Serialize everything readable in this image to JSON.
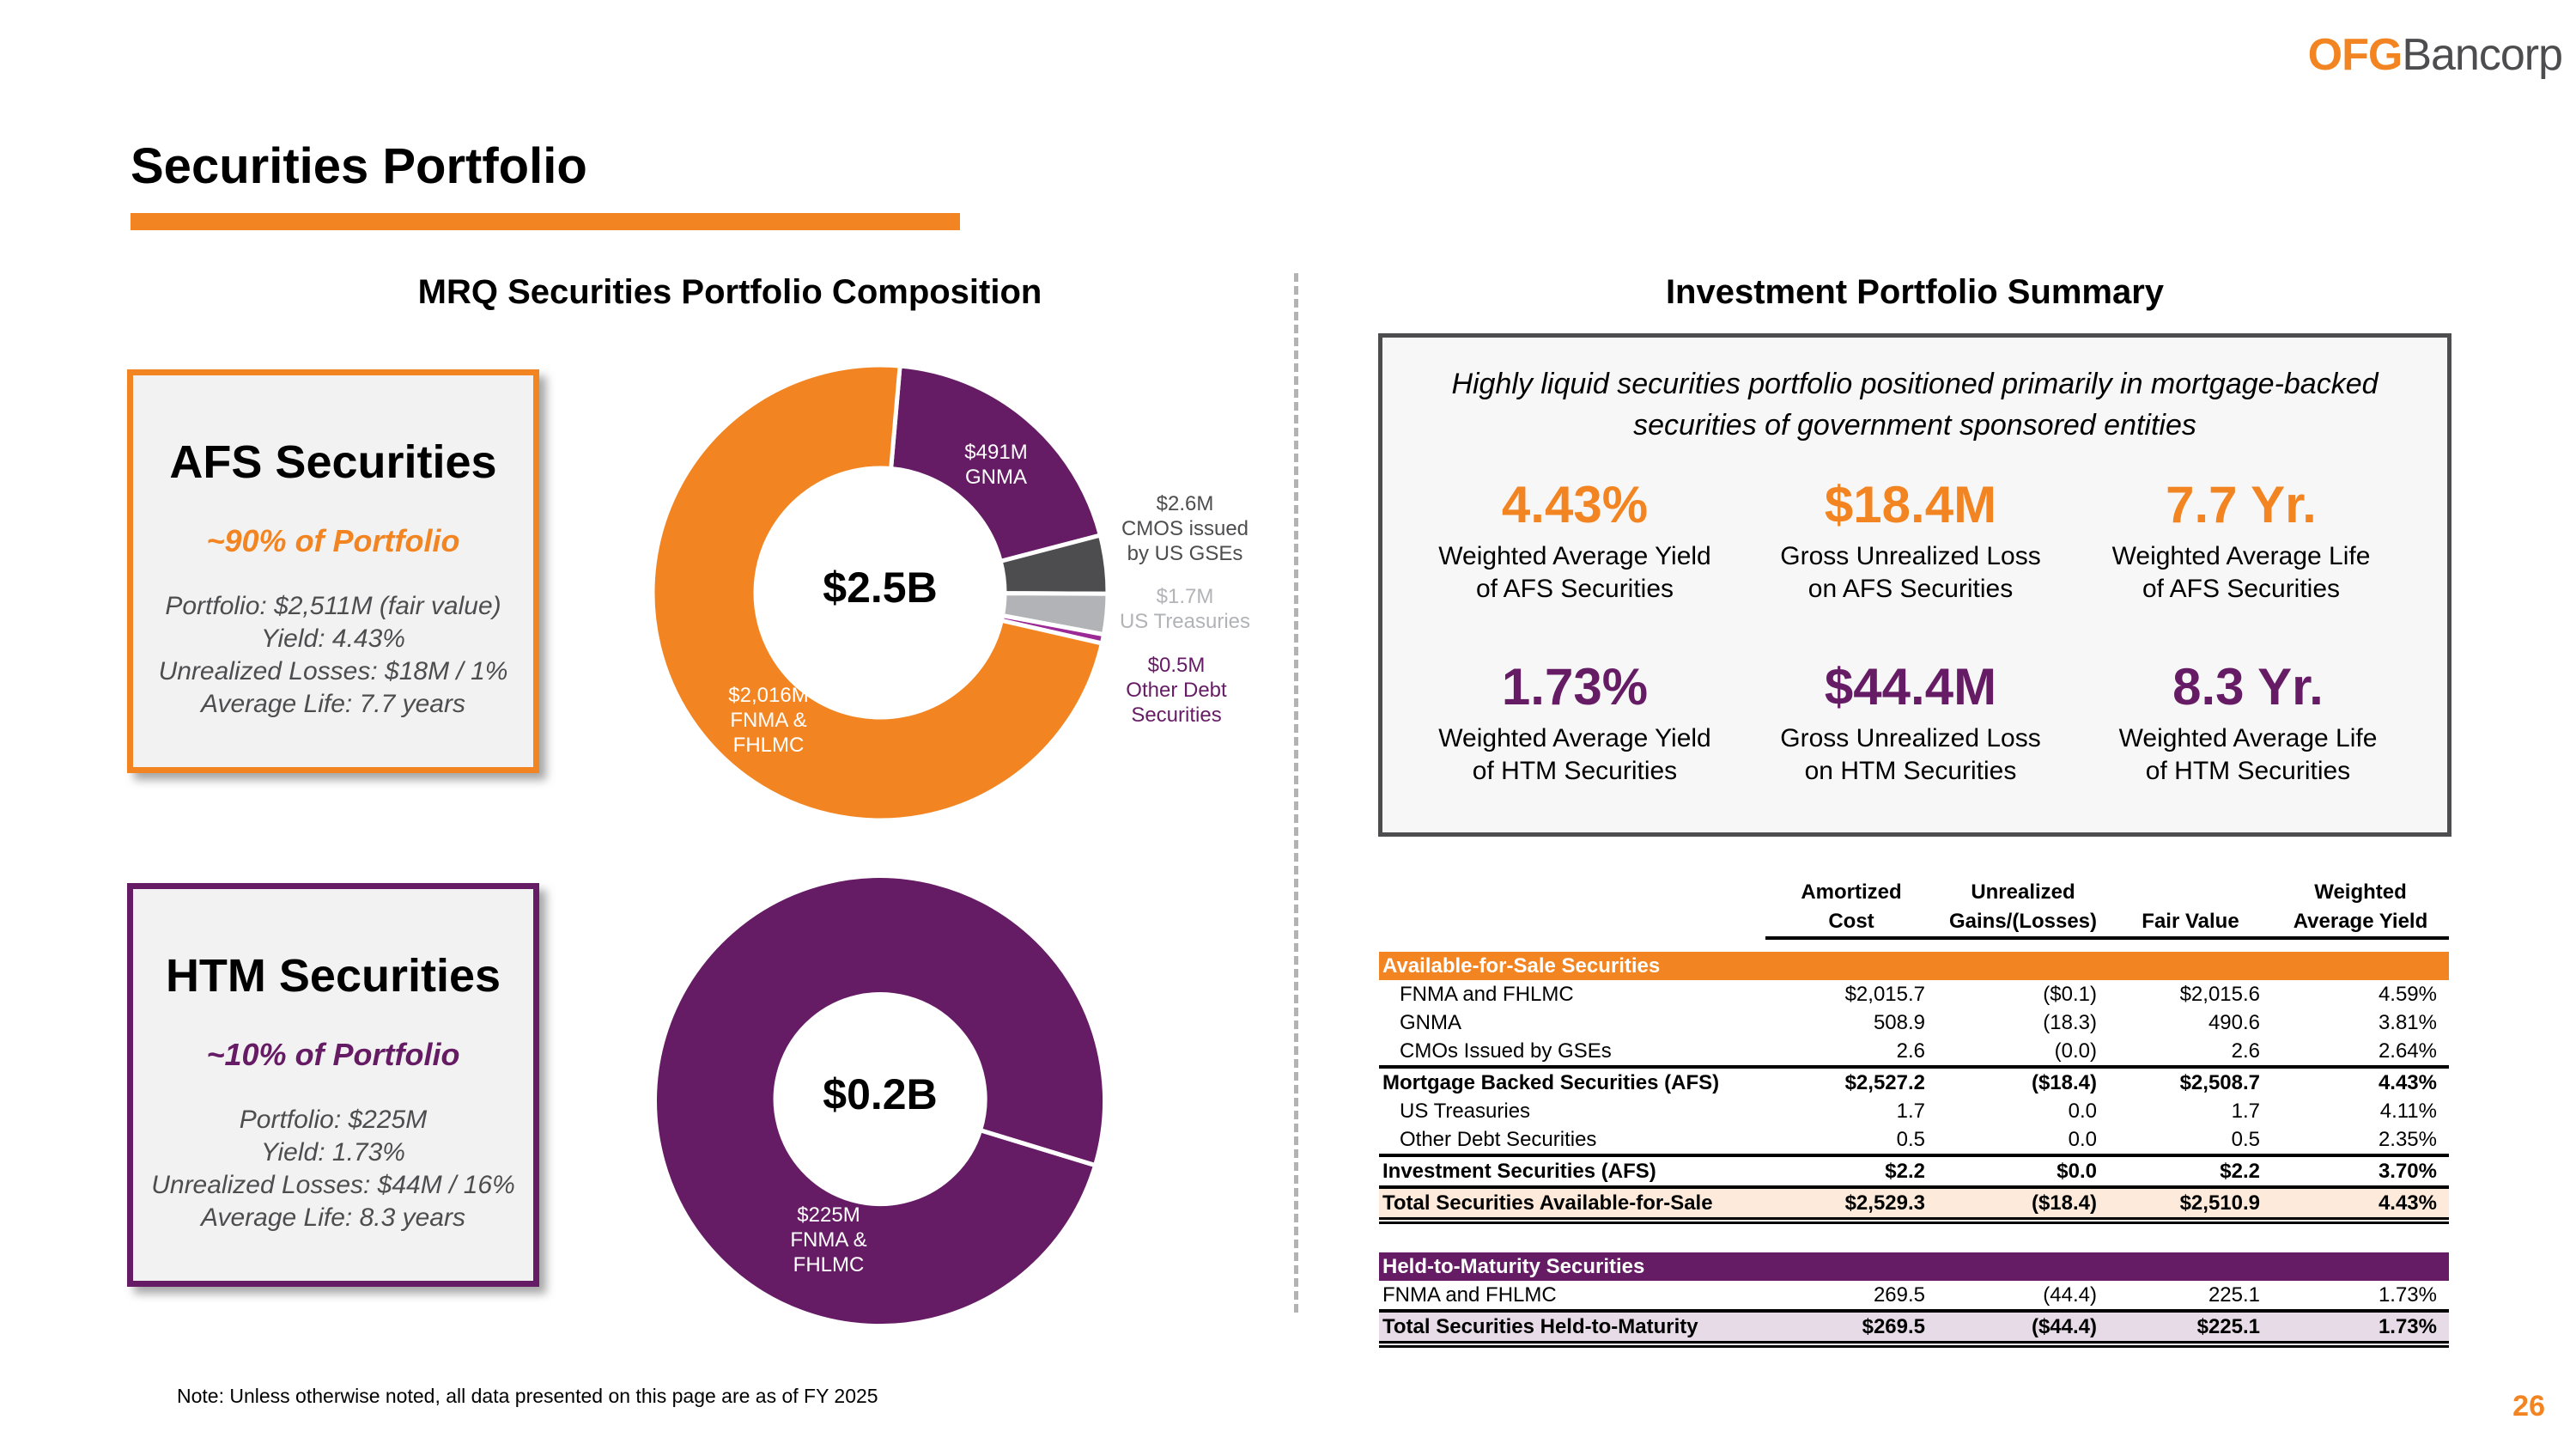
{
  "logo": {
    "part1": "OFG",
    "part2": "Bancorp"
  },
  "page": {
    "title": "Securities Portfolio",
    "left_section_title": "MRQ Securities Portfolio Composition",
    "right_section_title": "Investment Portfolio Summary",
    "note": "Note: Unless otherwise noted, all data presented on this page are as of FY 2025",
    "page_number": "26"
  },
  "colors": {
    "orange": "#f28522",
    "purple": "#661c65",
    "dark_gray": "#4d4d4f",
    "light_gray": "#b1b3b6",
    "magenta": "#9b2a96"
  },
  "cards": {
    "afs": {
      "title": "AFS Securities",
      "share": "~90% of Portfolio",
      "lines": [
        "Portfolio: $2,511M (fair value)",
        "Yield: 4.43%",
        "Unrealized Losses: $18M / 1%",
        "Average Life: 7.7 years"
      ]
    },
    "htm": {
      "title": "HTM Securities",
      "share": "~10% of Portfolio",
      "lines": [
        "Portfolio: $225M",
        "Yield: 1.73%",
        "Unrealized Losses: $44M / 16%",
        "Average Life: 8.3 years"
      ]
    }
  },
  "chart_data": [
    {
      "type": "pie",
      "title": "AFS Securities Composition",
      "center_label": "$2.5B",
      "units": "$M",
      "slices": [
        {
          "name": "GNMA",
          "value": 491,
          "label_value": "$491M",
          "label_text": "GNMA",
          "color": "#661c65"
        },
        {
          "name": "CMOS issued by US GSEs",
          "value": 2.6,
          "label_value": "$2.6M",
          "label_text": "CMOS issued by US GSEs",
          "color": "#4d4d4f"
        },
        {
          "name": "US Treasuries",
          "value": 1.7,
          "label_value": "$1.7M",
          "label_text": "US Treasuries",
          "color": "#b1b3b6"
        },
        {
          "name": "Other Debt Securities",
          "value": 0.5,
          "label_value": "$0.5M",
          "label_text": "Other Debt Securities",
          "color": "#9b2a96"
        },
        {
          "name": "FNMA & FHLMC",
          "value": 2016,
          "label_value": "$2,016M",
          "label_text": "FNMA & FHLMC",
          "color": "#f28522"
        }
      ]
    },
    {
      "type": "pie",
      "title": "HTM Securities Composition",
      "center_label": "$0.2B",
      "units": "$M",
      "slices": [
        {
          "name": "FNMA & FHLMC",
          "value": 225,
          "label_value": "$225M",
          "label_text": "FNMA & FHLMC",
          "color": "#661c65"
        }
      ]
    }
  ],
  "summary": {
    "description": "Highly liquid securities portfolio positioned primarily in mortgage-backed securities of government sponsored entities",
    "metrics": [
      {
        "value": "4.43%",
        "line1": "Weighted Average Yield",
        "line2": "of AFS Securities",
        "tone": "orange"
      },
      {
        "value": "$18.4M",
        "line1": "Gross Unrealized Loss",
        "line2": "on AFS Securities",
        "tone": "orange"
      },
      {
        "value": "7.7 Yr.",
        "line1": "Weighted Average Life",
        "line2": "of AFS Securities",
        "tone": "orange"
      },
      {
        "value": "1.73%",
        "line1": "Weighted Average Yield",
        "line2": "of HTM Securities",
        "tone": "purple"
      },
      {
        "value": "$44.4M",
        "line1": "Gross Unrealized Loss",
        "line2": "on HTM Securities",
        "tone": "purple"
      },
      {
        "value": "8.3 Yr.",
        "line1": "Weighted Average Life",
        "line2": "of HTM Securities",
        "tone": "purple"
      }
    ]
  },
  "table": {
    "headers": [
      {
        "l1": "",
        "l2": ""
      },
      {
        "l1": "Amortized",
        "l2": "Cost"
      },
      {
        "l1": "Unrealized",
        "l2": "Gains/(Losses)"
      },
      {
        "l1": "",
        "l2": "Fair Value"
      },
      {
        "l1": "Weighted",
        "l2": "Average Yield"
      }
    ],
    "afs_header": "Available-for-Sale Securities",
    "afs_rows": [
      [
        "FNMA and FHLMC",
        "$2,015.7",
        "($0.1)",
        "$2,015.6",
        "4.59%"
      ],
      [
        "GNMA",
        "508.9",
        "(18.3)",
        "490.6",
        "3.81%"
      ],
      [
        "CMOs Issued by GSEs",
        "2.6",
        "(0.0)",
        "2.6",
        "2.64%"
      ]
    ],
    "mbs_total": [
      "Mortgage Backed Securities (AFS)",
      "$2,527.2",
      "($18.4)",
      "$2,508.7",
      "4.43%"
    ],
    "inv_rows": [
      [
        "US Treasuries",
        "1.7",
        "0.0",
        "1.7",
        "4.11%"
      ],
      [
        "Other Debt Securities",
        "0.5",
        "0.0",
        "0.5",
        "2.35%"
      ]
    ],
    "inv_total": [
      "Investment Securities (AFS)",
      "$2.2",
      "$0.0",
      "$2.2",
      "3.70%"
    ],
    "afs_total": [
      "Total Securities Available-for-Sale",
      "$2,529.3",
      "($18.4)",
      "$2,510.9",
      "4.43%"
    ],
    "htm_header": "Held-to-Maturity Securities",
    "htm_rows": [
      [
        "FNMA and FHLMC",
        "269.5",
        "(44.4)",
        "225.1",
        "1.73%"
      ]
    ],
    "htm_total": [
      "Total Securities Held-to-Maturity",
      "$269.5",
      "($44.4)",
      "$225.1",
      "1.73%"
    ]
  }
}
